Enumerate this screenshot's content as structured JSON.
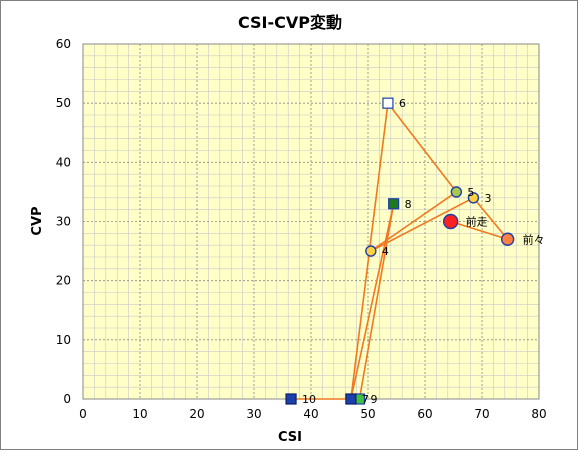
{
  "chart_data": {
    "type": "scatter",
    "title": "CSI-CVP変動",
    "xlabel": "CSI",
    "ylabel": "CVP",
    "xlim": [
      0,
      80
    ],
    "ylim": [
      0,
      60
    ],
    "xticks": [
      0,
      10,
      20,
      30,
      40,
      50,
      60,
      70,
      80
    ],
    "yticks": [
      0,
      10,
      20,
      30,
      40,
      50,
      60
    ],
    "grid": true,
    "colors": {
      "plot_background": "#ffffc8",
      "grid_major": "#888888",
      "grid_minor": "#c8c8c8",
      "path_line": "#f07820"
    },
    "path_order": [
      "10",
      "9",
      "8",
      "7",
      "6",
      "5",
      "4",
      "3",
      "前々",
      "前走"
    ],
    "points": [
      {
        "label": "10",
        "x": 36.5,
        "y": 0,
        "marker": "square",
        "fill": "#1c3fa8",
        "stroke": "#0a1f70"
      },
      {
        "label": "9",
        "x": 48.5,
        "y": 0,
        "marker": "square",
        "fill": "#40c040",
        "stroke": "#1c3fa8"
      },
      {
        "label": "8",
        "x": 54.5,
        "y": 33,
        "marker": "square",
        "fill": "#1f7a1f",
        "stroke": "#1c3fa8"
      },
      {
        "label": "7",
        "x": 47,
        "y": 0,
        "marker": "square",
        "fill": "#1c3fa8",
        "stroke": "#0a1f70"
      },
      {
        "label": "6",
        "x": 53.5,
        "y": 50,
        "marker": "square",
        "fill": "#ffffff",
        "stroke": "#1c3fa8"
      },
      {
        "label": "5",
        "x": 65.5,
        "y": 35,
        "marker": "circle",
        "fill": "#a8c850",
        "stroke": "#1c3fa8"
      },
      {
        "label": "4",
        "x": 50.5,
        "y": 25,
        "marker": "circle",
        "fill": "#ffd040",
        "stroke": "#1c3fa8"
      },
      {
        "label": "3",
        "x": 68.5,
        "y": 34,
        "marker": "circle",
        "fill": "#ffd040",
        "stroke": "#1c3fa8"
      },
      {
        "label": "前々",
        "x": 74.5,
        "y": 27,
        "marker": "circle",
        "fill": "#ff8040",
        "stroke": "#1c3fa8"
      },
      {
        "label": "前走",
        "x": 64.5,
        "y": 30,
        "marker": "circle",
        "fill": "#ff2020",
        "stroke": "#1c3fa8"
      }
    ]
  }
}
